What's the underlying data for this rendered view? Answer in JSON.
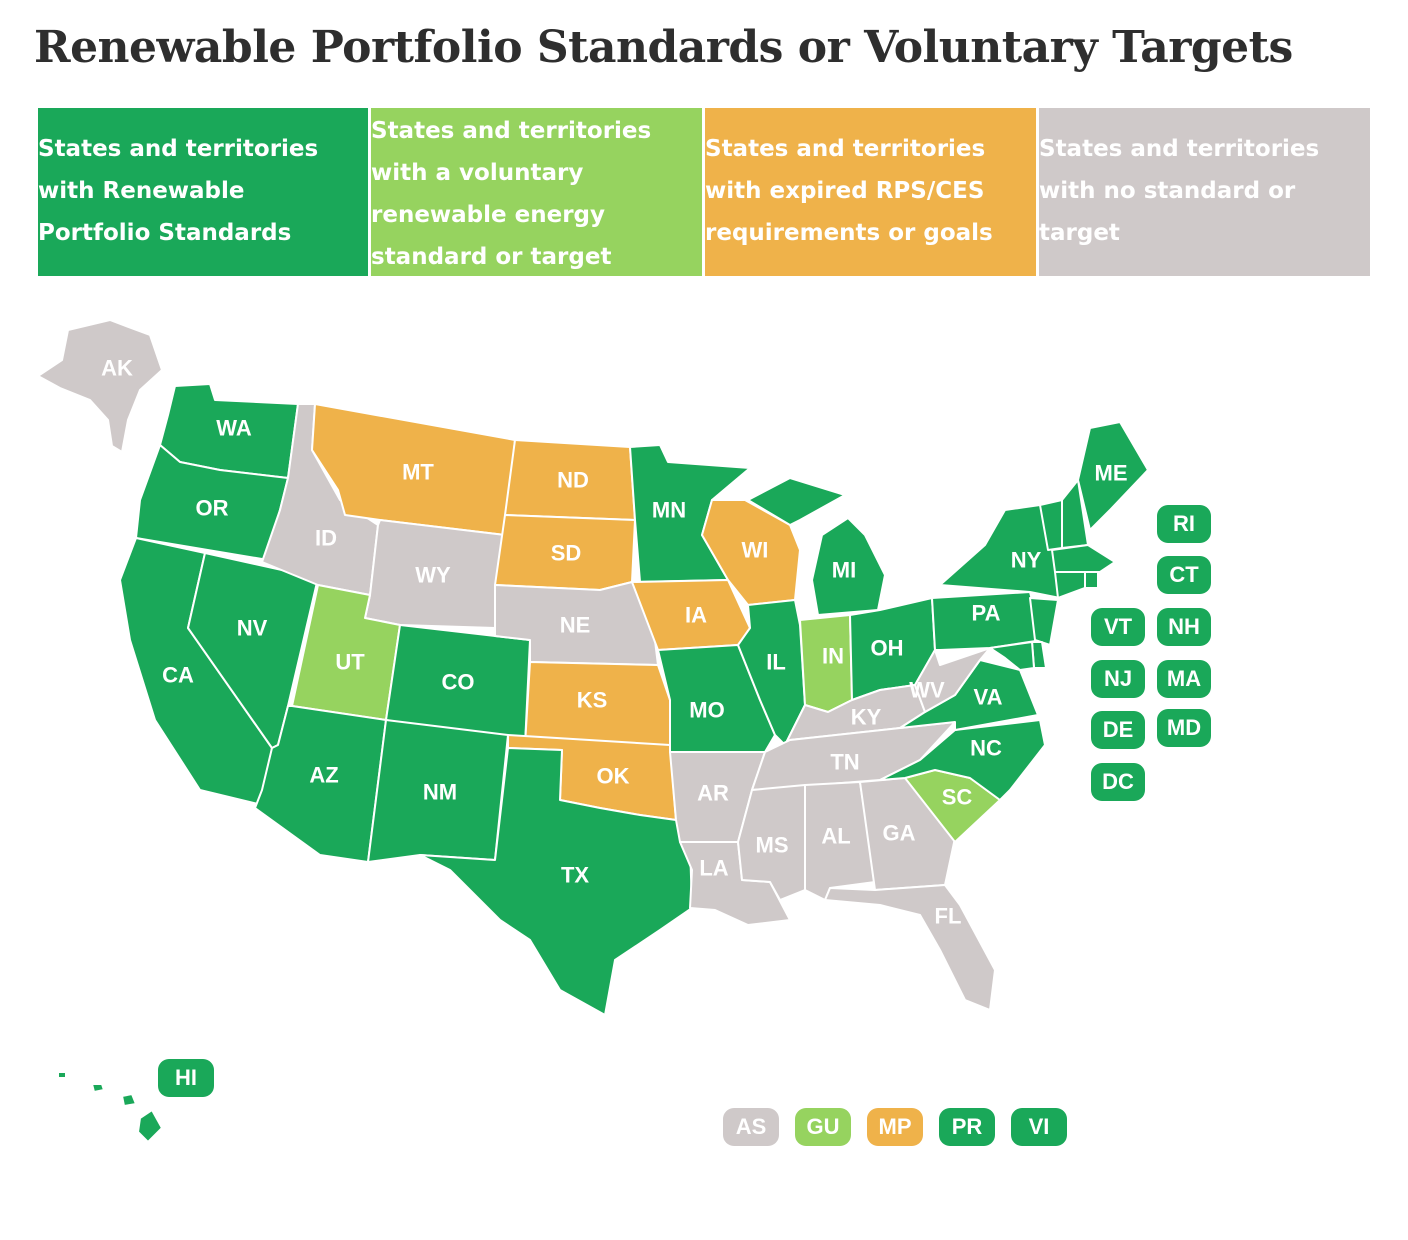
{
  "title": "Renewable Portfolio Standards or Voluntary Targets",
  "colors": {
    "rps": "#1aa859",
    "voluntary": "#96d35f",
    "expired": "#efb24a",
    "none": "#cfc9c9"
  },
  "legend": [
    {
      "category": "rps",
      "text": "States and territories with Renewable Portfolio Standards"
    },
    {
      "category": "voluntary",
      "text": "States and territories with a voluntary renewable energy standard or target"
    },
    {
      "category": "expired",
      "text": "States and territories with expired RPS/CES requirements or goals"
    },
    {
      "category": "none",
      "text": "States and territories with no standard or target"
    }
  ],
  "states": {
    "AK": "none",
    "WA": "rps",
    "OR": "rps",
    "CA": "rps",
    "NV": "rps",
    "ID": "none",
    "MT": "expired",
    "WY": "none",
    "UT": "voluntary",
    "AZ": "rps",
    "CO": "rps",
    "NM": "rps",
    "ND": "expired",
    "SD": "expired",
    "NE": "none",
    "KS": "expired",
    "OK": "expired",
    "TX": "rps",
    "MN": "rps",
    "IA": "expired",
    "MO": "rps",
    "AR": "none",
    "LA": "none",
    "WI": "expired",
    "IL": "rps",
    "MI": "rps",
    "IN": "voluntary",
    "OH": "rps",
    "KY": "none",
    "TN": "none",
    "MS": "none",
    "AL": "none",
    "GA": "none",
    "FL": "none",
    "SC": "voluntary",
    "NC": "rps",
    "VA": "rps",
    "WV": "none",
    "PA": "rps",
    "NY": "rps",
    "ME": "rps",
    "HI": "rps",
    "RI": "rps",
    "CT": "rps",
    "VT": "rps",
    "NH": "rps",
    "NJ": "rps",
    "MA": "rps",
    "DE": "rps",
    "MD": "rps",
    "DC": "rps"
  },
  "territories": [
    {
      "code": "AS",
      "category": "none"
    },
    {
      "code": "GU",
      "category": "voluntary"
    },
    {
      "code": "MP",
      "category": "expired"
    },
    {
      "code": "PR",
      "category": "rps"
    },
    {
      "code": "VI",
      "category": "rps"
    }
  ]
}
